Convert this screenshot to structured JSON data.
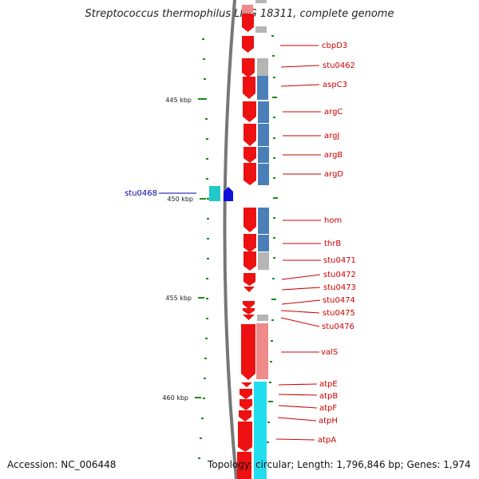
{
  "title": "Streptococcus thermophilus LMG 18311, complete genome",
  "footer": {
    "accession": "Accession: NC_006448",
    "topology": "Topology: circular; Length: 1,796,846 bp; Genes: 1,974"
  },
  "colors": {
    "background": "#ffffff",
    "backbone": "#777777",
    "ruler_tick": "#1a8a1a",
    "gene_label": "#cc0000",
    "external_label": "#0000aa",
    "cds_forward": "#ee1111",
    "feature_blue": "#4a7fb8",
    "feature_gray": "#b5b5b5",
    "feature_pink": "#ee8a8a",
    "feature_cyan": "#22ddee",
    "feature_teal": "#22c8c8",
    "feature_navy": "#1111dd"
  },
  "scale_labels": [
    "445 kbp",
    "450 kbp",
    "455 kbp",
    "460 kbp"
  ],
  "gene_labels": [
    "cbpD3",
    "stu0462",
    "aspC3",
    "argC",
    "argJ",
    "argB",
    "argD",
    "hom",
    "thrB",
    "stu0471",
    "stu0472",
    "stu0473",
    "stu0474",
    "stu0475",
    "stu0476",
    "valS",
    "atpE",
    "atpB",
    "atpF",
    "atpH",
    "atpA"
  ],
  "external_label": "stu0468"
}
